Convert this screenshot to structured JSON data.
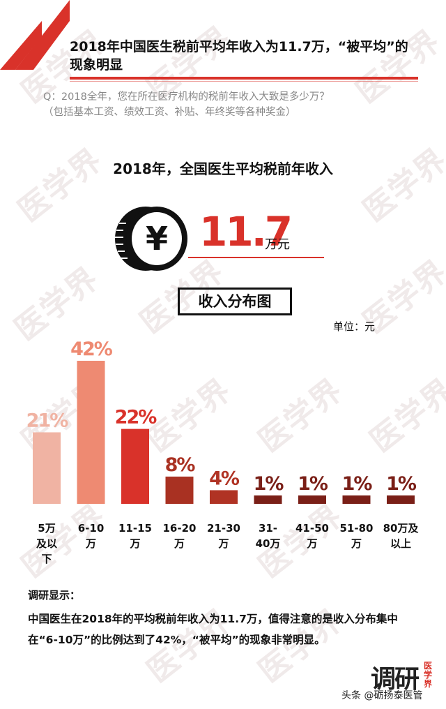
{
  "header": {
    "title": "2018年中国医生税前平均年收入为11.7万，“被平均”的现象明显",
    "question_line1": "Q：2018全年，您在所在医疗机构的税前年收入大致是多少万？",
    "question_line2": "（包括基本工资、绩效工资、补贴、年终奖等各种奖金）"
  },
  "summary": {
    "subtitle": "2018年，全国医生平均税前年收入",
    "currency_symbol": "¥",
    "average_value": "11.7",
    "average_unit": "万元"
  },
  "chart_heading": "收入分布图",
  "unit_label": "单位：元",
  "chart_data": {
    "type": "bar",
    "title": "收入分布图",
    "categories": [
      "5万及以下",
      "6-10万",
      "11-15万",
      "16-20万",
      "21-30万",
      "31-40万",
      "41-50万",
      "51-80万",
      "80万及以上"
    ],
    "category_lines": [
      [
        "5万",
        "及以",
        "下"
      ],
      [
        "6-10",
        "万"
      ],
      [
        "11-15",
        "万"
      ],
      [
        "16-20",
        "万"
      ],
      [
        "21-30",
        "万"
      ],
      [
        "31-",
        "40万"
      ],
      [
        "41-50",
        "万"
      ],
      [
        "51-80",
        "万"
      ],
      [
        "80万及",
        "以上"
      ]
    ],
    "values": [
      21,
      42,
      22,
      8,
      4,
      1,
      1,
      1,
      1
    ],
    "value_labels": [
      "21%",
      "42%",
      "22%",
      "8%",
      "4%",
      "1%",
      "1%",
      "1%",
      "1%"
    ],
    "bar_colors": [
      "#f0b3a3",
      "#ee8a72",
      "#d9322a",
      "#a93122",
      "#b03324",
      "#7a1f17",
      "#7a1f17",
      "#7a1f17",
      "#7a1f17"
    ],
    "ylim": [
      0,
      42
    ],
    "grid": false,
    "legend": "none"
  },
  "findings": {
    "title": "调研显示：",
    "body": "中国医生在2018年的平均税前年收入为11.7万，值得注意的是收入分布集中在“6-10万”的比例达到了42%，“被平均”的现象非常明显。"
  },
  "watermark": "医学界",
  "logo": {
    "main": "调研",
    "side": "医学界"
  },
  "credit": "头条 @砺扬泰医管",
  "colors": {
    "accent": "#d9322a",
    "text": "#111111",
    "muted": "#888888"
  }
}
